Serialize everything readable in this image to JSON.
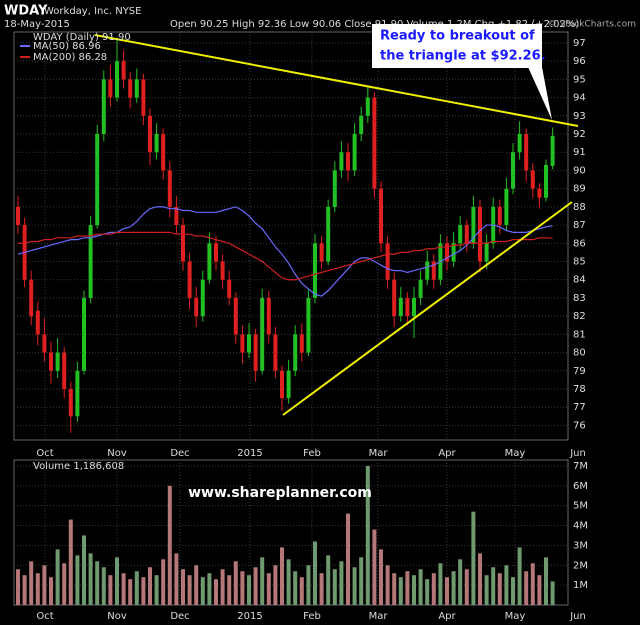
{
  "chart_data": [
    {
      "type": "candlestick",
      "symbol": "WDAY",
      "company": "Workday, Inc. NYSE",
      "date": "18-May-2015",
      "quote": "Open 90.25  High 92.36  Low 90.06  Close 91.90  Volume 1.2M  Chg +1.82 (+2.02%)",
      "credit": "© StockCharts.com",
      "legend": "WDAY (Daily) 91.90",
      "annotation": [
        "Ready to breakout of",
        "the triangle at $92.26."
      ],
      "up_color": "#22c022",
      "down_color": "#e02020",
      "x_labels": [
        "Oct",
        "Nov",
        "Dec",
        "2015",
        "Feb",
        "Mar",
        "Apr",
        "May",
        "Jun"
      ],
      "ylim": [
        75.2,
        97.6
      ],
      "yticks": [
        76,
        77,
        78,
        79,
        80,
        81,
        82,
        83,
        84,
        85,
        86,
        87,
        88,
        89,
        90,
        91,
        92,
        93,
        94,
        95,
        96,
        97
      ],
      "grid": true,
      "ohlc": [
        [
          88,
          88.6,
          86.5,
          87
        ],
        [
          87,
          87.4,
          83.6,
          84
        ],
        [
          84,
          84.5,
          81.5,
          82
        ],
        [
          82.3,
          82.8,
          80.4,
          81
        ],
        [
          81,
          81.9,
          79.5,
          80
        ],
        [
          80,
          80.6,
          78.3,
          79
        ],
        [
          79,
          80.8,
          78.6,
          80
        ],
        [
          80,
          80.3,
          77.5,
          78
        ],
        [
          78,
          78.4,
          75.6,
          76.5
        ],
        [
          76.5,
          79.5,
          76.2,
          79
        ],
        [
          79,
          83.4,
          78.8,
          83
        ],
        [
          83,
          87.5,
          82.7,
          87
        ],
        [
          87,
          92.5,
          86.8,
          92
        ],
        [
          92,
          95.5,
          91.6,
          95
        ],
        [
          95,
          95.8,
          93.5,
          94
        ],
        [
          94,
          97.3,
          93.8,
          96
        ],
        [
          96,
          96.6,
          94.5,
          95
        ],
        [
          95,
          95.4,
          93.4,
          94
        ],
        [
          94,
          95.6,
          93.7,
          95
        ],
        [
          95,
          95.3,
          92.5,
          93
        ],
        [
          93,
          93.4,
          90.3,
          91
        ],
        [
          91,
          92.6,
          90.6,
          92
        ],
        [
          92,
          92.3,
          89.5,
          90
        ],
        [
          90,
          90.5,
          87.4,
          88
        ],
        [
          88,
          88.6,
          86.5,
          87
        ],
        [
          87,
          87.4,
          84.5,
          85
        ],
        [
          85,
          85.5,
          82.4,
          83
        ],
        [
          83,
          83.6,
          81.4,
          82
        ],
        [
          82,
          84.5,
          81.7,
          84
        ],
        [
          84,
          86.6,
          83.8,
          86
        ],
        [
          86,
          86.4,
          84.5,
          85
        ],
        [
          85,
          85.4,
          83.5,
          84
        ],
        [
          84,
          84.5,
          82.6,
          83
        ],
        [
          83,
          83.3,
          80.5,
          81
        ],
        [
          81,
          81.5,
          79.4,
          80
        ],
        [
          80,
          81.6,
          79.7,
          81
        ],
        [
          81,
          81.3,
          78.4,
          79
        ],
        [
          79,
          83.5,
          78.8,
          83
        ],
        [
          83,
          83.4,
          80.5,
          81
        ],
        [
          81,
          81.4,
          78.6,
          79
        ],
        [
          79,
          79.3,
          76.8,
          77.5
        ],
        [
          77.5,
          79.6,
          77.2,
          79
        ],
        [
          79,
          81.5,
          78.7,
          81
        ],
        [
          81,
          81.6,
          79.5,
          80
        ],
        [
          80,
          83.5,
          79.8,
          83
        ],
        [
          83,
          86.5,
          82.7,
          86
        ],
        [
          86,
          86.4,
          84.6,
          85
        ],
        [
          85,
          88.4,
          84.8,
          88
        ],
        [
          88,
          90.5,
          87.7,
          90
        ],
        [
          90,
          91.6,
          89.6,
          91
        ],
        [
          91,
          91.5,
          89.4,
          90
        ],
        [
          90,
          92.6,
          89.7,
          92
        ],
        [
          92,
          93.5,
          91.6,
          93
        ],
        [
          93,
          94.6,
          92.6,
          94
        ],
        [
          94,
          94.3,
          88.5,
          89
        ],
        [
          89,
          89.4,
          85.5,
          86
        ],
        [
          86,
          86.4,
          83.5,
          84
        ],
        [
          84,
          84.4,
          81.4,
          82
        ],
        [
          82,
          83.6,
          81.7,
          83
        ],
        [
          83,
          83.3,
          81.5,
          82
        ],
        [
          82,
          83.6,
          80.8,
          83
        ],
        [
          83,
          84.5,
          82.6,
          84
        ],
        [
          84,
          85.6,
          83.7,
          85
        ],
        [
          85,
          85.4,
          83.5,
          84
        ],
        [
          84,
          86.5,
          83.7,
          86
        ],
        [
          86,
          86.4,
          84.5,
          85
        ],
        [
          85,
          86.6,
          84.7,
          86
        ],
        [
          86,
          87.5,
          85.6,
          87
        ],
        [
          87,
          87.3,
          85.5,
          86
        ],
        [
          86,
          88.6,
          85.7,
          88
        ],
        [
          88,
          88.4,
          84.4,
          85
        ],
        [
          85,
          86.5,
          84.6,
          86
        ],
        [
          86,
          88.5,
          85.7,
          88
        ],
        [
          88,
          88.4,
          86.5,
          87
        ],
        [
          87,
          89.6,
          86.7,
          89
        ],
        [
          89,
          91.5,
          88.7,
          91
        ],
        [
          91,
          92.7,
          90.6,
          92
        ],
        [
          92,
          92.3,
          89.4,
          90
        ],
        [
          90,
          90.4,
          88.5,
          89
        ],
        [
          89,
          89.3,
          87.9,
          88.5
        ],
        [
          88.5,
          90.6,
          88.3,
          90.3
        ],
        [
          90.25,
          92.36,
          90.06,
          91.9
        ]
      ],
      "series": [
        {
          "name": "MA(50) 86.96",
          "color": "#6a6aff",
          "values": [
            85.4,
            85.5,
            85.6,
            85.7,
            85.8,
            85.9,
            86.0,
            86.1,
            86.2,
            86.2,
            86.3,
            86.3,
            86.4,
            86.5,
            86.6,
            86.6,
            86.8,
            86.9,
            87.2,
            87.6,
            87.9,
            88.0,
            88.0,
            87.9,
            87.9,
            87.8,
            87.8,
            87.7,
            87.7,
            87.7,
            87.7,
            87.8,
            87.9,
            88.0,
            87.8,
            87.5,
            87.1,
            86.8,
            86.3,
            85.8,
            85.4,
            84.9,
            84.3,
            83.8,
            83.5,
            83.2,
            83.1,
            83.4,
            83.8,
            84.2,
            84.6,
            85.0,
            85.2,
            85.2,
            85.0,
            84.8,
            84.6,
            84.5,
            84.5,
            84.4,
            84.5,
            84.6,
            84.7,
            84.8,
            85.0,
            85.2,
            85.4,
            85.6,
            85.9,
            86.3,
            86.7,
            87.0,
            87.0,
            86.9,
            86.7,
            86.6,
            86.6,
            86.6,
            86.7,
            86.8,
            86.9,
            86.96
          ]
        },
        {
          "name": "MA(200) 86.28",
          "color": "#d02020",
          "values": [
            86.0,
            86.0,
            86.1,
            86.1,
            86.2,
            86.2,
            86.3,
            86.3,
            86.3,
            86.4,
            86.4,
            86.4,
            86.5,
            86.5,
            86.5,
            86.6,
            86.6,
            86.6,
            86.6,
            86.6,
            86.6,
            86.6,
            86.6,
            86.6,
            86.5,
            86.5,
            86.5,
            86.4,
            86.4,
            86.3,
            86.2,
            86.1,
            86.0,
            85.8,
            85.6,
            85.4,
            85.2,
            85.0,
            84.7,
            84.4,
            84.1,
            84.0,
            84.0,
            84.1,
            84.2,
            84.3,
            84.4,
            84.5,
            84.6,
            84.7,
            84.8,
            84.9,
            85.0,
            85.1,
            85.2,
            85.3,
            85.4,
            85.4,
            85.5,
            85.5,
            85.6,
            85.6,
            85.7,
            85.7,
            85.8,
            85.8,
            85.9,
            85.9,
            86.0,
            86.0,
            86.0,
            86.0,
            86.1,
            86.1,
            86.1,
            86.2,
            86.2,
            86.2,
            86.2,
            86.3,
            86.3,
            86.28
          ]
        }
      ]
    },
    {
      "type": "bar",
      "legend": "Volume 1,186,608",
      "watermark": "www.shareplanner.com",
      "up_color": "#6f9a6f",
      "down_color": "#b47878",
      "x_labels": [
        "Oct",
        "Nov",
        "Dec",
        "2015",
        "Feb",
        "Mar",
        "Apr",
        "May",
        "Jun"
      ],
      "ylim": [
        0,
        7.3
      ],
      "yticks": [
        {
          "value": 1,
          "label": "1M"
        },
        {
          "value": 2,
          "label": "2M"
        },
        {
          "value": 3,
          "label": "3M"
        },
        {
          "value": 4,
          "label": "4M"
        },
        {
          "value": 5,
          "label": "5M"
        },
        {
          "value": 6,
          "label": "6M"
        },
        {
          "value": 7,
          "label": "7M"
        }
      ],
      "grid": true,
      "values": [
        1.8,
        1.5,
        2.2,
        1.6,
        2.0,
        1.4,
        2.8,
        2.1,
        4.3,
        2.5,
        3.5,
        2.6,
        2.2,
        1.9,
        1.5,
        2.4,
        1.6,
        1.3,
        1.7,
        1.4,
        1.9,
        1.5,
        2.3,
        6.0,
        2.6,
        1.8,
        1.5,
        2.0,
        1.4,
        1.6,
        1.3,
        1.8,
        1.5,
        2.2,
        1.7,
        1.5,
        1.9,
        2.4,
        1.6,
        2.0,
        2.9,
        2.3,
        1.7,
        1.4,
        2.0,
        3.2,
        1.6,
        2.5,
        1.8,
        2.2,
        4.6,
        1.9,
        2.4,
        7.0,
        3.8,
        2.8,
        2.0,
        1.6,
        1.4,
        1.7,
        1.5,
        1.8,
        1.3,
        1.6,
        2.1,
        1.4,
        1.7,
        2.3,
        1.8,
        4.7,
        2.6,
        1.5,
        1.9,
        1.6,
        2.0,
        1.4,
        2.9,
        1.7,
        2.1,
        1.5,
        2.4,
        1.19
      ]
    }
  ]
}
